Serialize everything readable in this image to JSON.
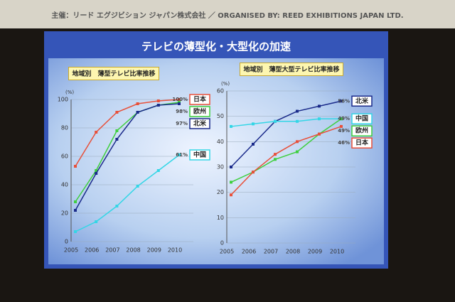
{
  "banner": "主催：リード エグジビション ジャパン株式会社 ／ ORGANISED BY: REED EXHIBITIONS JAPAN LTD.",
  "title": "テレビの薄型化・大型化の加速",
  "chart_data": [
    {
      "type": "line",
      "title": "地域別　薄型テレビ比率推移",
      "ylabel": "(%)",
      "categories": [
        "2005",
        "2006",
        "2007",
        "2008",
        "2009",
        "2010"
      ],
      "ylim": [
        0,
        100
      ],
      "yticks": [
        0,
        20,
        40,
        60,
        80,
        100
      ],
      "series": [
        {
          "name": "日本",
          "color": "#e8503a",
          "values": [
            53,
            77,
            91,
            97,
            99,
            100
          ],
          "value_labels": [
            null,
            null,
            null,
            null,
            null,
            "100%"
          ]
        },
        {
          "name": "欧州",
          "color": "#3fcf3f",
          "values": [
            28,
            50,
            78,
            91,
            96,
            98
          ],
          "value_labels": [
            null,
            null,
            null,
            null,
            null,
            "98%"
          ]
        },
        {
          "name": "北米",
          "color": "#1a2a8a",
          "values": [
            22,
            48,
            72,
            91,
            96,
            97
          ],
          "value_labels": [
            null,
            null,
            null,
            null,
            null,
            "97%"
          ]
        },
        {
          "name": "中国",
          "color": "#33d6e6",
          "values": [
            7,
            14,
            25,
            39,
            50,
            61
          ],
          "value_labels": [
            null,
            null,
            null,
            null,
            null,
            "61%"
          ]
        }
      ]
    },
    {
      "type": "line",
      "title": "地域別　薄型大型テレビ比率推移",
      "ylabel": "(%)",
      "categories": [
        "2005",
        "2006",
        "2007",
        "2008",
        "2009",
        "2010"
      ],
      "ylim": [
        0,
        60
      ],
      "yticks": [
        0,
        10,
        20,
        30,
        40,
        50,
        60
      ],
      "series": [
        {
          "name": "北米",
          "color": "#1a2a8a",
          "values": [
            30,
            39,
            48,
            52,
            54,
            56
          ],
          "value_labels": [
            null,
            null,
            null,
            null,
            null,
            "56%"
          ]
        },
        {
          "name": "中国",
          "color": "#33d6e6",
          "values": [
            46,
            47,
            48,
            48,
            49,
            49
          ],
          "value_labels": [
            null,
            null,
            null,
            null,
            null,
            "49%"
          ]
        },
        {
          "name": "欧州",
          "color": "#3fcf3f",
          "values": [
            24,
            28,
            33,
            36,
            43,
            49
          ],
          "value_labels": [
            null,
            null,
            null,
            null,
            null,
            "49%"
          ]
        },
        {
          "name": "日本",
          "color": "#e8503a",
          "values": [
            19,
            28,
            35,
            40,
            43,
            46
          ],
          "value_labels": [
            null,
            null,
            null,
            null,
            null,
            "46%"
          ]
        }
      ]
    }
  ]
}
